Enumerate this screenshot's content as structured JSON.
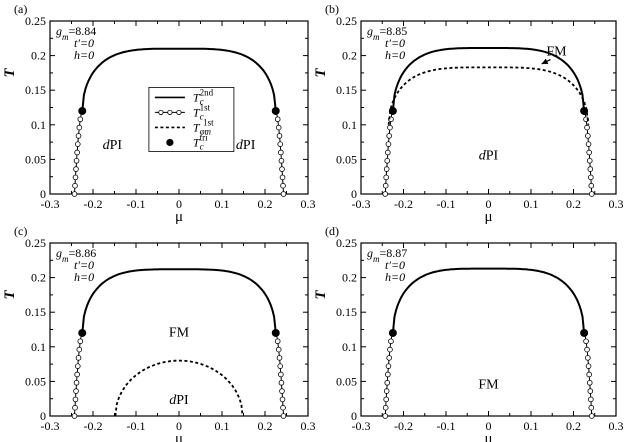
{
  "chart_data": [
    {
      "panel": "(a)",
      "type": "line",
      "xlabel": "μ",
      "ylabel": "T",
      "xlim": [
        -0.3,
        0.3
      ],
      "ylim": [
        0,
        0.25
      ],
      "xticks": [
        "-0.3",
        "-0.2",
        "-0.1",
        "0",
        "0.1",
        "0.2",
        "0.3"
      ],
      "yticks": [
        "0",
        "0.05",
        "0.1",
        "0.15",
        "0.2",
        "0.25"
      ],
      "params": [
        "gm=8.84",
        "t′=0",
        "h=0"
      ],
      "grid": false,
      "second_order_Tc": {
        "x_range": [
          -0.225,
          0.225
        ],
        "peak_T": 0.21,
        "endpoint_T": 0.12
      },
      "first_order_Tc": {
        "mu_at_T0": 0.243,
        "mu_at_tricritical": 0.225
      },
      "tricritical_points": [
        {
          "x": -0.225,
          "y": 0.12
        },
        {
          "x": 0.225,
          "y": 0.12
        }
      ],
      "regions": [
        {
          "label": "dPI",
          "x": -0.155,
          "y": 0.065
        },
        {
          "label": "dPI",
          "x": 0.155,
          "y": 0.065
        }
      ],
      "legend": [
        {
          "label": "Tc 2nd",
          "style": "solid"
        },
        {
          "label": "Tc 1st",
          "style": "open-circle"
        },
        {
          "label": "Tφm 1st",
          "style": "dashed"
        },
        {
          "label": "Tc tri",
          "style": "filled-circle"
        }
      ],
      "legend_position": "center"
    },
    {
      "panel": "(b)",
      "type": "line",
      "xlabel": "μ",
      "ylabel": "T",
      "xlim": [
        -0.3,
        0.3
      ],
      "ylim": [
        0,
        0.25
      ],
      "xticks": [
        "-0.3",
        "-0.2",
        "-0.1",
        "0",
        "0.1",
        "0.2",
        "0.3"
      ],
      "yticks": [
        "0",
        "0.05",
        "0.1",
        "0.15",
        "0.2",
        "0.25"
      ],
      "params": [
        "gm=8.85",
        "t′=0",
        "h=0"
      ],
      "grid": false,
      "second_order_Tc": {
        "x_range": [
          -0.225,
          0.225
        ],
        "peak_T": 0.211,
        "endpoint_T": 0.12
      },
      "first_order_Tc": {
        "mu_at_T0": 0.243,
        "mu_at_tricritical": 0.225
      },
      "tricritical_points": [
        {
          "x": -0.225,
          "y": 0.12
        },
        {
          "x": 0.225,
          "y": 0.12
        }
      ],
      "phi_m_first_order": {
        "x_range": [
          -0.235,
          0.235
        ],
        "peak_T": 0.183,
        "endpoint_T": 0.1
      },
      "regions": [
        {
          "label": "FM",
          "x": 0.16,
          "y": 0.2,
          "arrow_to": {
            "x": 0.125,
            "y": 0.188
          }
        },
        {
          "label": "dPI",
          "x": 0,
          "y": 0.05
        }
      ]
    },
    {
      "panel": "(c)",
      "type": "line",
      "xlabel": "μ",
      "ylabel": "T",
      "xlim": [
        -0.3,
        0.3
      ],
      "ylim": [
        0,
        0.25
      ],
      "xticks": [
        "-0.3",
        "-0.2",
        "-0.1",
        "0",
        "0.1",
        "0.2",
        "0.3"
      ],
      "yticks": [
        "0",
        "0.05",
        "0.1",
        "0.15",
        "0.2",
        "0.25"
      ],
      "params": [
        "gm=8.86",
        "t′=0",
        "h=0"
      ],
      "grid": false,
      "second_order_Tc": {
        "x_range": [
          -0.225,
          0.225
        ],
        "peak_T": 0.212,
        "endpoint_T": 0.12
      },
      "first_order_Tc": {
        "mu_at_T0": 0.243,
        "mu_at_tricritical": 0.225
      },
      "tricritical_points": [
        {
          "x": -0.225,
          "y": 0.12
        },
        {
          "x": 0.225,
          "y": 0.12
        }
      ],
      "phi_m_first_order": {
        "x_range": [
          -0.148,
          0.148
        ],
        "peak_T": 0.08,
        "endpoint_T": 0.0
      },
      "regions": [
        {
          "label": "FM",
          "x": 0,
          "y": 0.115
        },
        {
          "label": "dPI",
          "x": 0,
          "y": 0.017
        }
      ]
    },
    {
      "panel": "(d)",
      "type": "line",
      "xlabel": "μ",
      "ylabel": "T",
      "xlim": [
        -0.3,
        0.3
      ],
      "ylim": [
        0,
        0.25
      ],
      "xticks": [
        "-0.3",
        "-0.2",
        "-0.1",
        "0",
        "0.1",
        "0.2",
        "0.3"
      ],
      "yticks": [
        "0",
        "0.05",
        "0.1",
        "0.15",
        "0.2",
        "0.25"
      ],
      "params": [
        "gm=8.87",
        "t′=0",
        "h=0"
      ],
      "grid": false,
      "second_order_Tc": {
        "x_range": [
          -0.225,
          0.225
        ],
        "peak_T": 0.213,
        "endpoint_T": 0.12
      },
      "first_order_Tc": {
        "mu_at_T0": 0.243,
        "mu_at_tricritical": 0.225
      },
      "tricritical_points": [
        {
          "x": -0.225,
          "y": 0.12
        },
        {
          "x": 0.225,
          "y": 0.12
        }
      ],
      "regions": [
        {
          "label": "FM",
          "x": 0,
          "y": 0.04
        }
      ]
    }
  ]
}
